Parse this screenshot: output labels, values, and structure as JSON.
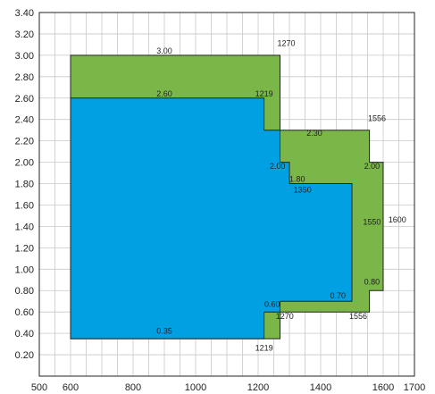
{
  "chart_data": {
    "type": "area",
    "title": "",
    "xlabel": "",
    "ylabel": "",
    "xlim": [
      500,
      1700
    ],
    "ylim": [
      0,
      3.4
    ],
    "x_ticks": [
      500,
      600,
      800,
      1000,
      1200,
      1400,
      1600,
      1700
    ],
    "x_tick_labels": [
      "500",
      "600",
      "800",
      "1000",
      "1200",
      "1400",
      "1600",
      "1700"
    ],
    "y_ticks": [
      0.2,
      0.4,
      0.6,
      0.8,
      1.0,
      1.2,
      1.4,
      1.6,
      1.8,
      2.0,
      2.2,
      2.4,
      2.6,
      2.8,
      3.0,
      3.2,
      3.4
    ],
    "y_tick_labels": [
      "0.20",
      "0.40",
      "0.60",
      "0.80",
      "1.00",
      "1.20",
      "1.40",
      "1.60",
      "1.80",
      "2.00",
      "2.20",
      "2.40",
      "2.60",
      "2.80",
      "3.00",
      "3.20",
      "3.40"
    ],
    "grid": true,
    "series": [
      {
        "color": "#7ab648",
        "x": [
          600,
          1270,
          1270,
          1350,
          1350,
          1556,
          1556,
          1600,
          1600,
          1556,
          1556,
          1270,
          1270,
          600
        ],
        "y": [
          3.0,
          3.0,
          2.3,
          2.3,
          2.3,
          2.3,
          2.0,
          2.0,
          0.8,
          0.8,
          0.6,
          0.6,
          0.35,
          0.35
        ]
      },
      {
        "color": "#00a0e3",
        "x": [
          600,
          1219,
          1219,
          1270,
          1270,
          1300,
          1300,
          1500,
          1500,
          1270,
          1270,
          1219,
          1219,
          600
        ],
        "y": [
          2.6,
          2.6,
          2.3,
          2.3,
          2.0,
          2.0,
          1.8,
          1.8,
          0.7,
          0.7,
          0.6,
          0.6,
          0.35,
          0.35
        ]
      }
    ],
    "annotations": [
      {
        "text": "3.00",
        "x": 900,
        "y": 3.0
      },
      {
        "text": "1270",
        "x": 1290,
        "y": 3.07
      },
      {
        "text": "2.60",
        "x": 900,
        "y": 2.6
      },
      {
        "text": "1219",
        "x": 1219,
        "y": 2.6
      },
      {
        "text": "1556",
        "x": 1580,
        "y": 2.37
      },
      {
        "text": "2.30",
        "x": 1380,
        "y": 2.23
      },
      {
        "text": "2.00",
        "x": 1262,
        "y": 1.92
      },
      {
        "text": "1.80",
        "x": 1325,
        "y": 1.8
      },
      {
        "text": "2.00",
        "x": 1564,
        "y": 1.92
      },
      {
        "text": "1350",
        "x": 1342,
        "y": 1.7
      },
      {
        "text": "1550",
        "x": 1564,
        "y": 1.4
      },
      {
        "text": "1600",
        "x": 1645,
        "y": 1.42
      },
      {
        "text": "0.80",
        "x": 1564,
        "y": 0.84
      },
      {
        "text": "0.70",
        "x": 1455,
        "y": 0.71
      },
      {
        "text": "0.60",
        "x": 1245,
        "y": 0.63
      },
      {
        "text": "1270",
        "x": 1285,
        "y": 0.52
      },
      {
        "text": "1556",
        "x": 1520,
        "y": 0.52
      },
      {
        "text": "0.35",
        "x": 900,
        "y": 0.38
      },
      {
        "text": "1219",
        "x": 1219,
        "y": 0.22
      }
    ]
  }
}
